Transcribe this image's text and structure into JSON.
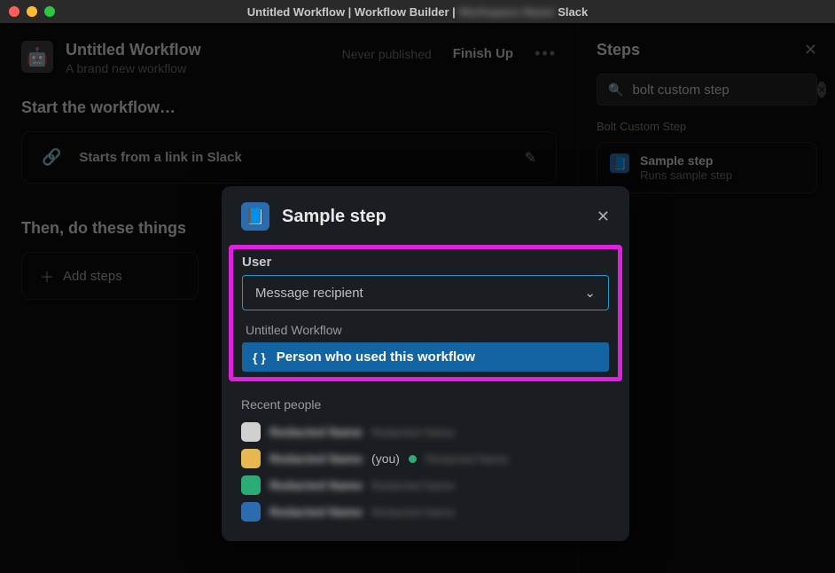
{
  "colors": {
    "bg": "#0d0d0d",
    "modal_bg": "#1a1d21",
    "highlight_border": "#e020e0",
    "select_border": "#1d9bd1",
    "selected_option_bg": "#1264a3",
    "presence_green": "#2bac76"
  },
  "titlebar": {
    "text_prefix": "Untitled Workflow | Workflow Builder | ",
    "text_suffix": " Slack",
    "blurred_workspace": "Workspace Name"
  },
  "header": {
    "title": "Untitled Workflow",
    "subtitle": "A brand new workflow",
    "never_published": "Never published",
    "finish_up": "Finish Up"
  },
  "sections": {
    "start": "Start the workflow…",
    "then": "Then, do these things"
  },
  "trigger": {
    "label": "Starts from a link in Slack"
  },
  "add_steps": {
    "label": "Add steps"
  },
  "sidebar": {
    "title": "Steps",
    "search_value": "bolt custom step",
    "group": "Bolt Custom Step",
    "item": {
      "title": "Sample step",
      "subtitle": "Runs sample step"
    }
  },
  "modal": {
    "title": "Sample step",
    "field_label": "User",
    "select_placeholder": "Message recipient",
    "group_label": "Untitled Workflow",
    "selected_option": "Person who used this workflow",
    "recent_label": "Recent people",
    "people": [
      {
        "name": "Redacted Name",
        "sub": "Redacted Name",
        "avatar_color": "#d0d0d0",
        "you": false,
        "presence": false
      },
      {
        "name": "Redacted Name",
        "sub": "Redacted Name",
        "avatar_color": "#e6b84f",
        "you": true,
        "presence": true
      },
      {
        "name": "Redacted Name",
        "sub": "Redacted Name",
        "avatar_color": "#2bac76",
        "you": false,
        "presence": false
      },
      {
        "name": "Redacted Name",
        "sub": "Redacted Name",
        "avatar_color": "#2b6cb0",
        "you": false,
        "presence": false
      }
    ],
    "you_label": "(you)"
  }
}
